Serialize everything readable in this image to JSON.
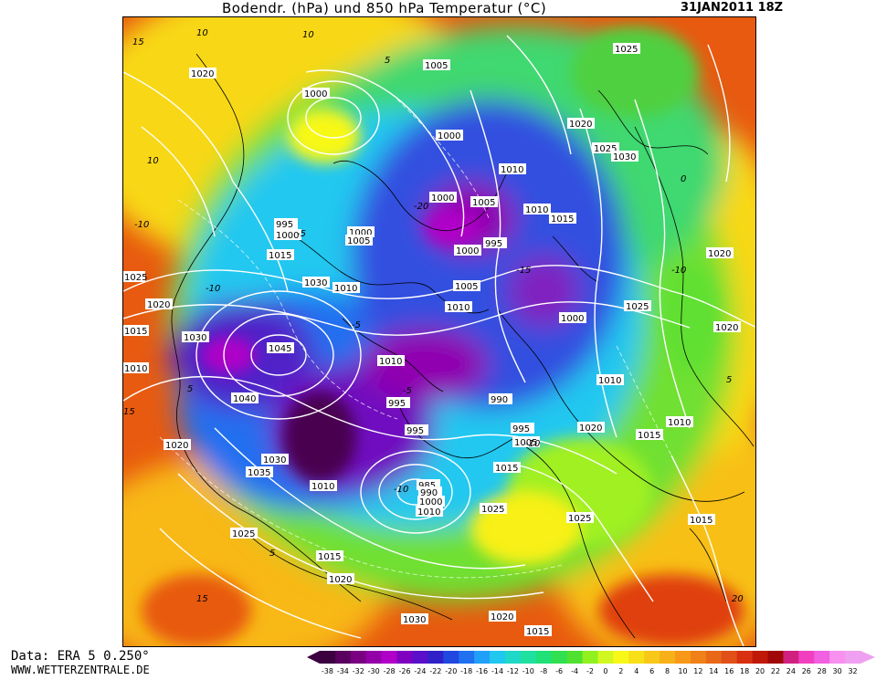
{
  "header": {
    "title": "Bodendr. (hPa) und 850 hPa Temperatur (°C)",
    "date": "31JAN2011 18Z"
  },
  "footer": {
    "data_source": "Data: ERA 5 0.250°",
    "website": "WWW.WETTERZENTRALE.DE"
  },
  "legend": {
    "ticks": [
      "-38",
      "-34",
      "-32",
      "-30",
      "-28",
      "-26",
      "-24",
      "-22",
      "-20",
      "-18",
      "-16",
      "-14",
      "-12",
      "-10",
      "-8",
      "-6",
      "-4",
      "-2",
      "0",
      "2",
      "4",
      "6",
      "8",
      "10",
      "12",
      "14",
      "16",
      "18",
      "20",
      "22",
      "24",
      "26",
      "28",
      "30",
      "32"
    ],
    "colors": [
      "#3a0040",
      "#5a005e",
      "#7a0082",
      "#9400a8",
      "#b000c8",
      "#8000c0",
      "#5a10c8",
      "#3020c8",
      "#2048e0",
      "#2070f0",
      "#20a0f8",
      "#20c8f0",
      "#20d8c8",
      "#20e0a0",
      "#20e078",
      "#30e050",
      "#50e030",
      "#90f020",
      "#d0f820",
      "#f8f818",
      "#f8e018",
      "#f8c818",
      "#f8b018",
      "#f89818",
      "#f08018",
      "#e86818",
      "#e05018",
      "#d83010",
      "#c01808",
      "#a00808",
      "#d02080",
      "#f040c0",
      "#f060e0",
      "#f890f0",
      "#f0a0f0"
    ],
    "colors_note": "fill colours of the temperature scale, cold (left) to warm (right)"
  },
  "pressure_labels": [
    "1025",
    "1005",
    "1020",
    "1000",
    "995",
    "1030",
    "1010",
    "1040",
    "1035",
    "1045",
    "1015",
    "990",
    "985"
  ],
  "temperature_labels": [
    "10",
    "-10",
    "5",
    "-5",
    "0",
    "15",
    "-15",
    "-20",
    "20"
  ]
}
